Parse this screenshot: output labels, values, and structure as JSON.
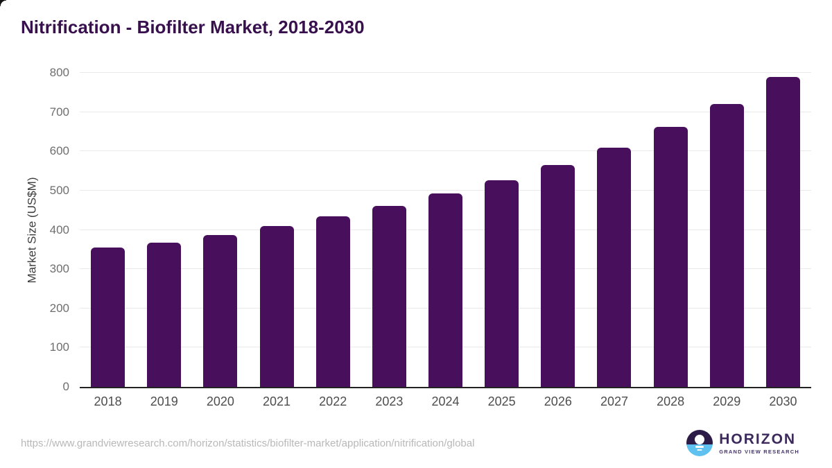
{
  "page": {
    "source_url": "https://www.grandviewresearch.com/horizon/statistics/biofilter-market/application/nitrification/global"
  },
  "branding": {
    "logo_name": "HORIZON",
    "logo_tagline": "GRAND VIEW RESEARCH"
  },
  "colors": {
    "bar": "#48105c",
    "title": "#38104d",
    "gridline": "#e9e9e9",
    "axis_line": "#232323",
    "y_tick_label": "#6e6e6e",
    "x_tick_label": "#4d4d4d",
    "url_text": "#b8b8b8",
    "logo_dark": "#2c1a47",
    "logo_blue": "#5ec1ef"
  },
  "chart_data": {
    "type": "bar",
    "title": "Nitrification - Biofilter Market, 2018-2030",
    "categories": [
      "2018",
      "2019",
      "2020",
      "2021",
      "2022",
      "2023",
      "2024",
      "2025",
      "2026",
      "2027",
      "2028",
      "2029",
      "2030"
    ],
    "values": [
      355,
      367,
      386,
      410,
      435,
      461,
      493,
      527,
      565,
      610,
      662,
      720,
      790
    ],
    "xlabel": "",
    "ylabel": "Market Size (US$M)",
    "ylim": [
      0,
      800
    ],
    "ytick_step": 100,
    "grid": "horizontal-only",
    "legend": "none",
    "bar_corner_radius": "rounded-top"
  }
}
